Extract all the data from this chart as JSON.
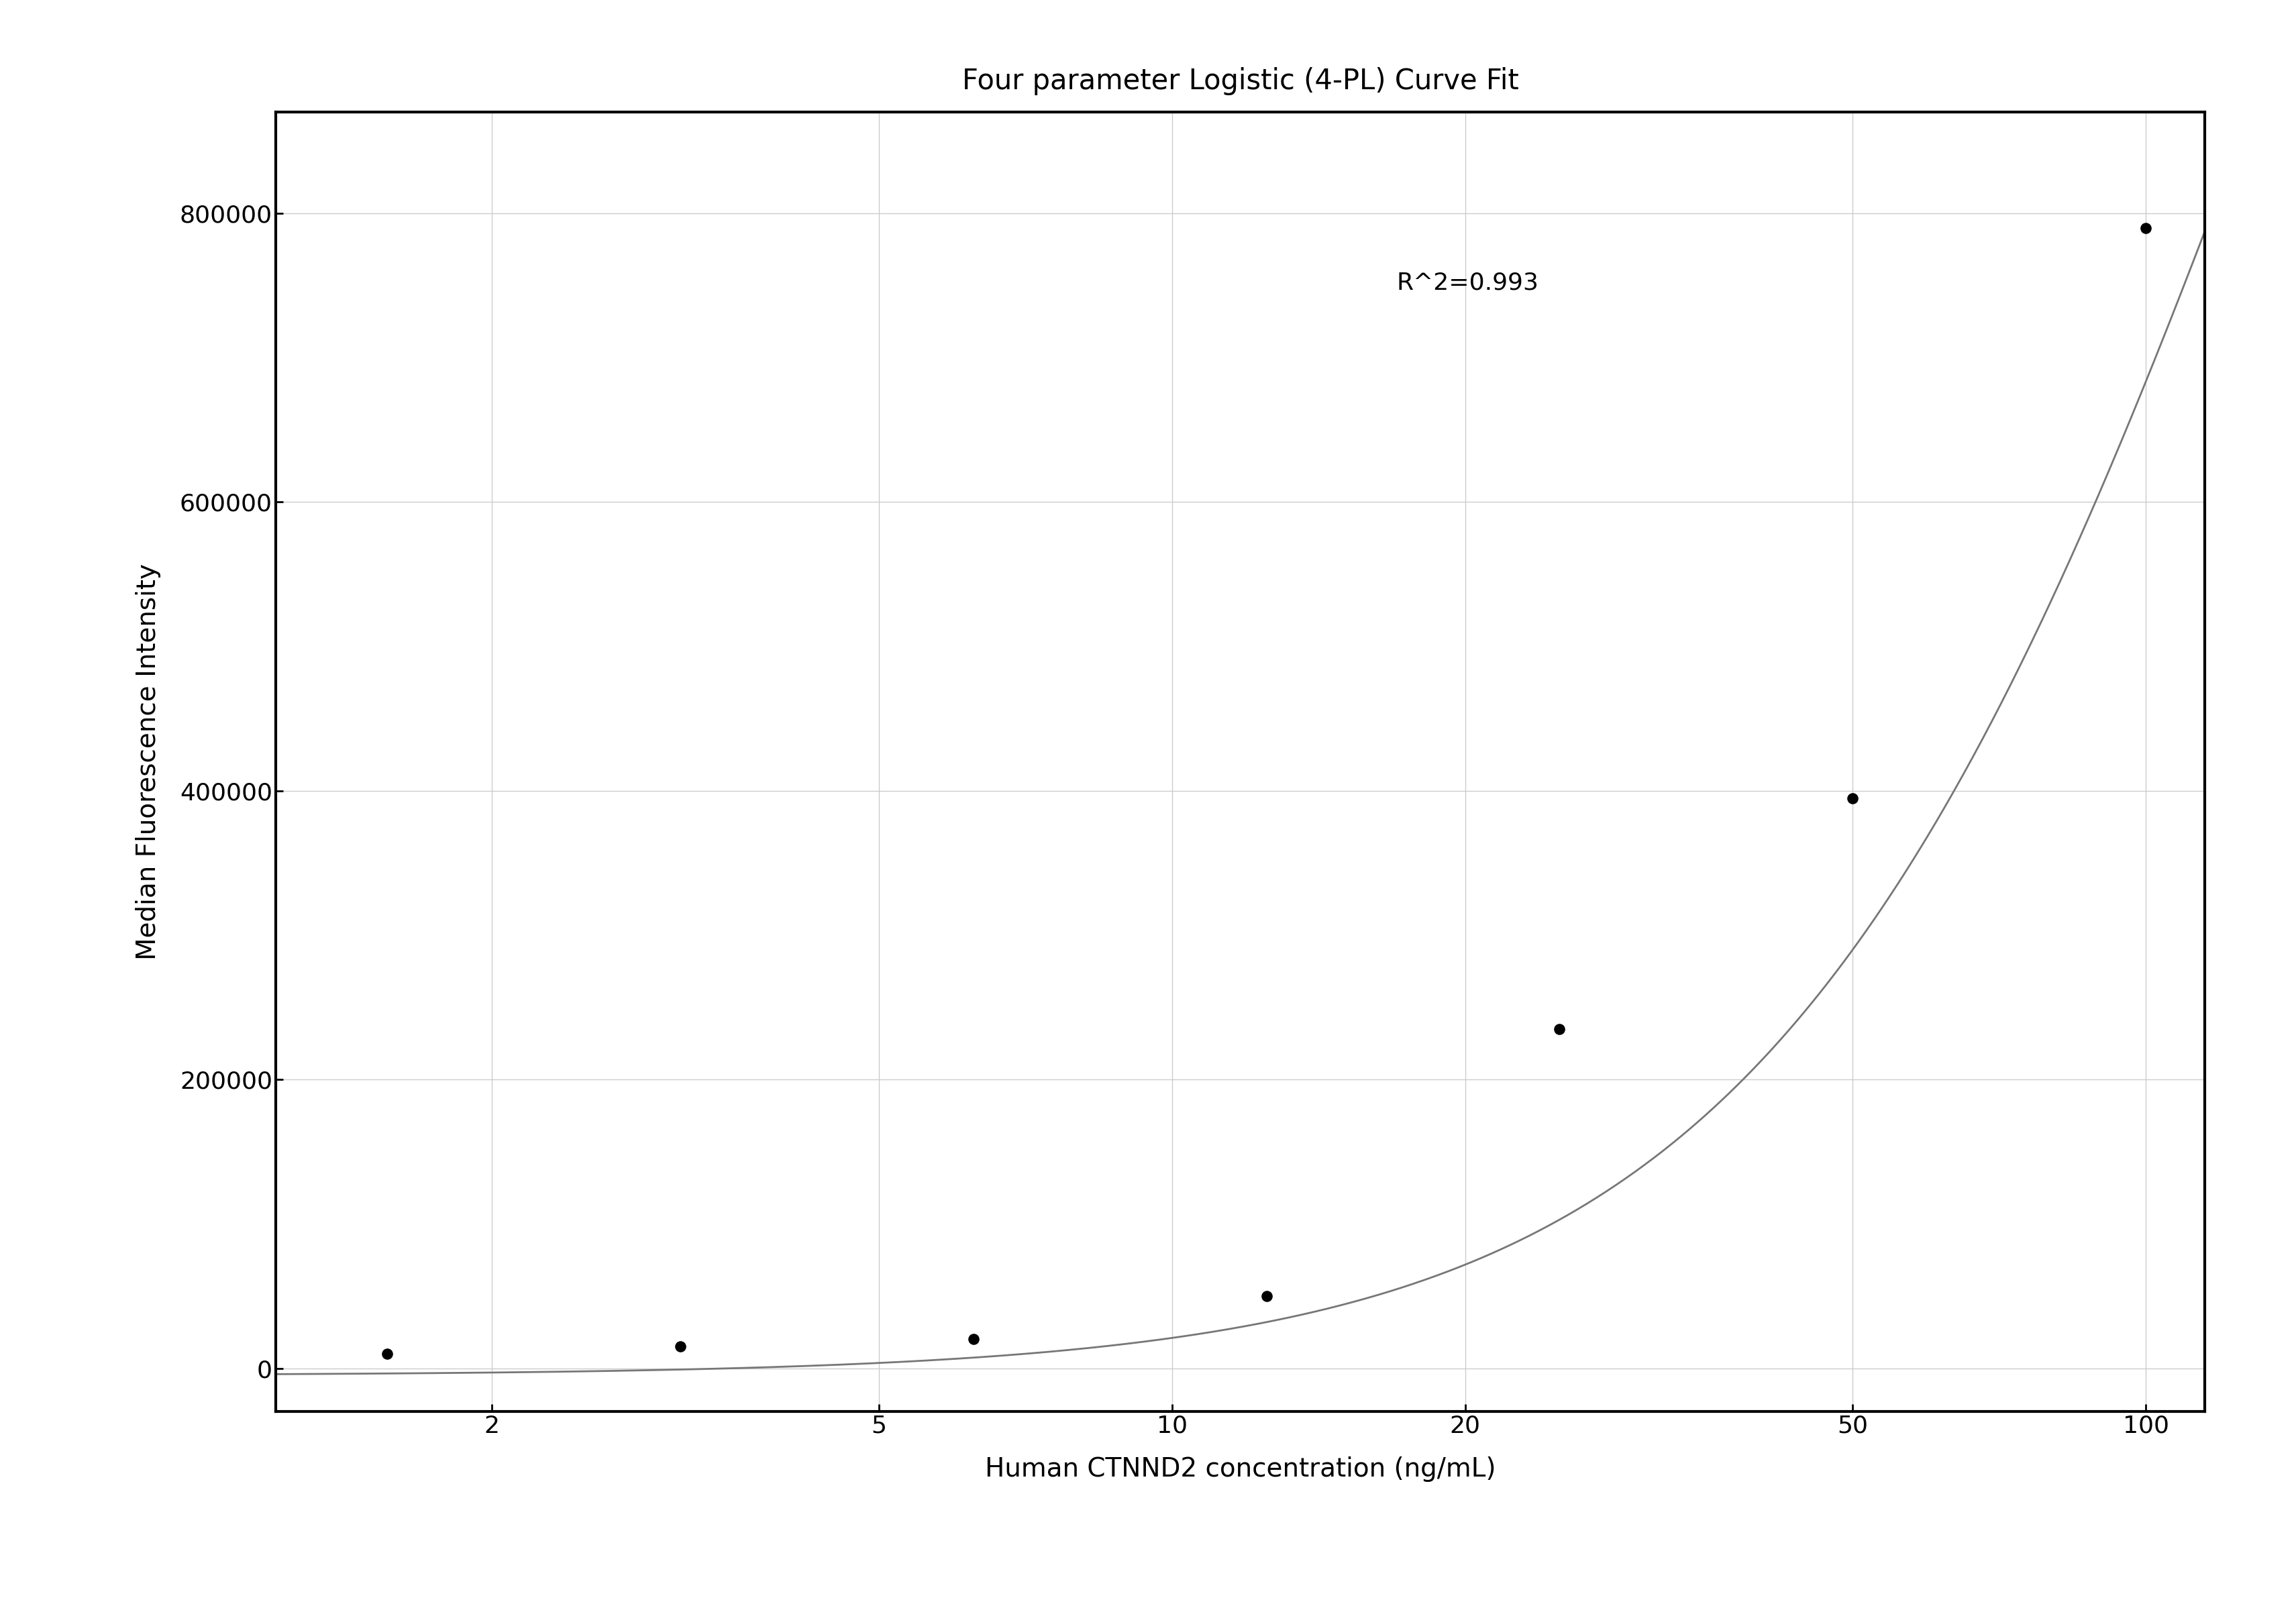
{
  "title": "Four parameter Logistic (4-PL) Curve Fit",
  "xlabel": "Human CTNND2 concentration (ng/mL)",
  "ylabel": "Median Fluorescence Intensity",
  "r_squared_text": "R^2=0.993",
  "data_x": [
    1.5625,
    3.125,
    6.25,
    12.5,
    25,
    50,
    100
  ],
  "data_y": [
    10000,
    15000,
    20000,
    50000,
    235000,
    395000,
    790000
  ],
  "xscale": "log",
  "xlim": [
    1.2,
    115
  ],
  "ylim": [
    -30000,
    870000
  ],
  "yticks": [
    0,
    200000,
    400000,
    600000,
    800000
  ],
  "xticks": [
    2,
    5,
    10,
    20,
    50,
    100
  ],
  "curve_color": "#777777",
  "dot_color": "#000000",
  "dot_size": 120,
  "background_color": "#ffffff",
  "grid_color": "#cccccc",
  "title_fontsize": 30,
  "label_fontsize": 28,
  "tick_fontsize": 26,
  "annotation_fontsize": 26,
  "r2_x": 17,
  "r2_y": 760000,
  "4pl_A": -5000,
  "4pl_D": 2000000,
  "4pl_C": 150,
  "4pl_B": 1.6
}
